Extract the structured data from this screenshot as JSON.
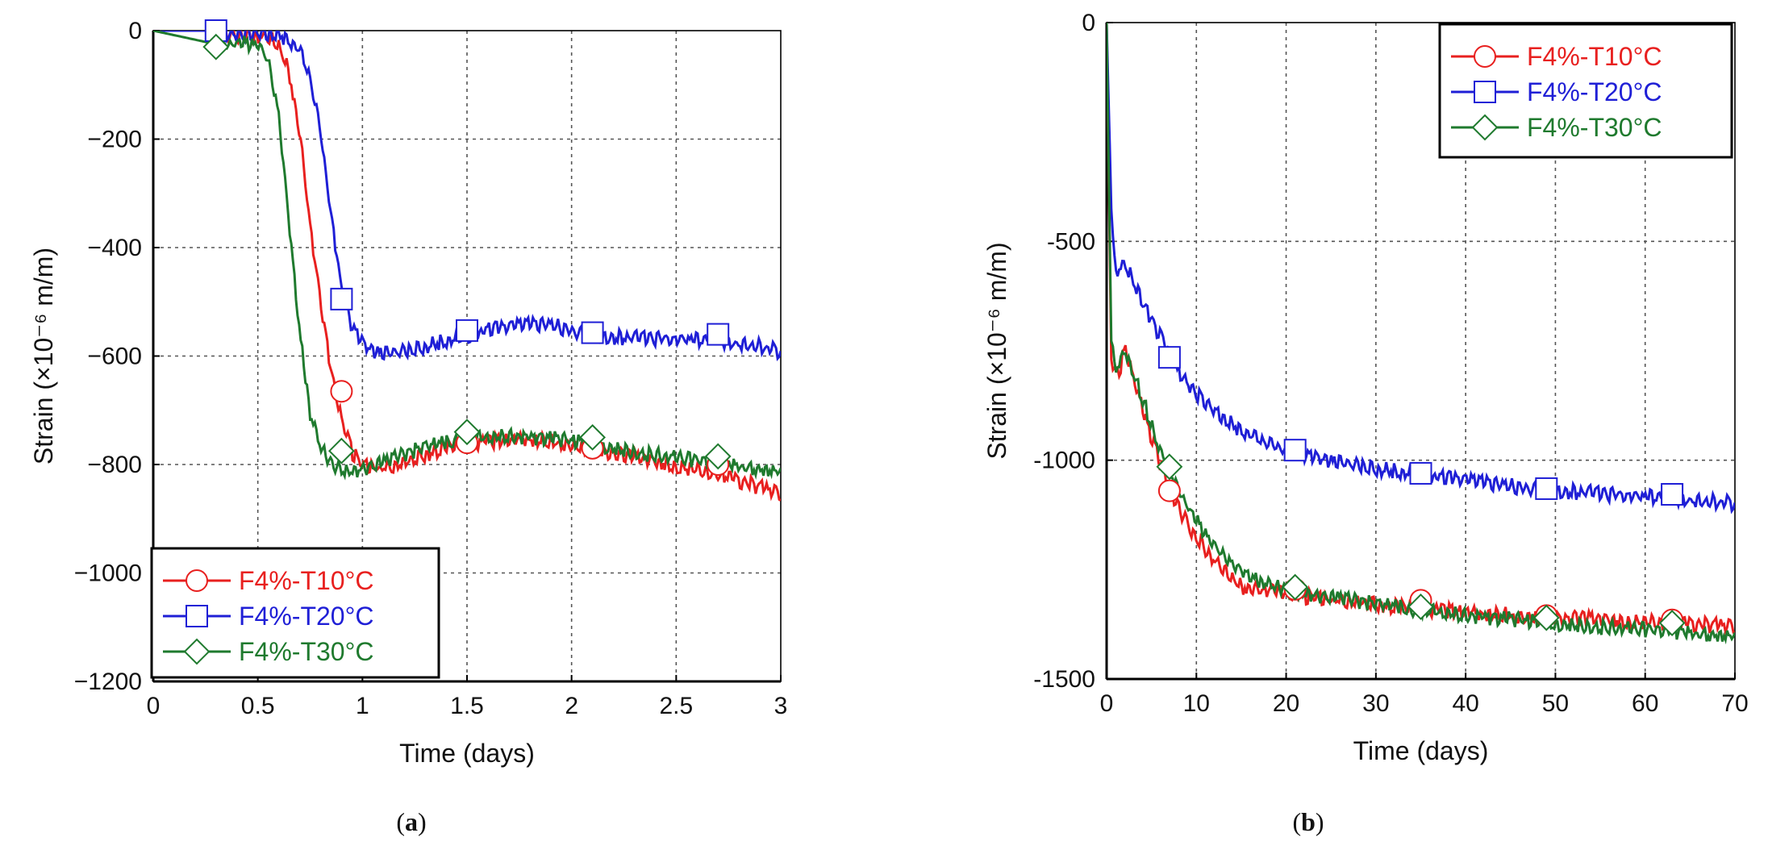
{
  "colors": {
    "F4%-T10°C": "#e8201f",
    "F4%-T20°C": "#1f1fd6",
    "F4%-T30°C": "#1f7a2e",
    "grid": "#555555",
    "axis": "#000000"
  },
  "chart_data": [
    {
      "id": "a",
      "type": "line",
      "panel_label": "a",
      "xlabel": "Time (days)",
      "ylabel": "Strain (×10⁻⁶ m/m)",
      "xlim": [
        0,
        3
      ],
      "ylim": [
        -1200,
        0
      ],
      "xticks": [
        0,
        0.5,
        1,
        1.5,
        2,
        2.5,
        3
      ],
      "xtick_labels": [
        "0",
        "0.5",
        "1",
        "1.5",
        "2",
        "2.5",
        "3"
      ],
      "yticks": [
        0,
        -200,
        -400,
        -600,
        -800,
        -1000,
        -1200
      ],
      "ytick_labels": [
        "0",
        "−200",
        "−400",
        "−600",
        "−800",
        "−1000",
        "−1200"
      ],
      "grid": true,
      "legend_position": "bottom-left",
      "series": [
        {
          "name": "F4%-T10°C",
          "marker": "circle",
          "x": [
            0,
            0.3,
            0.55,
            0.6,
            0.65,
            0.7,
            0.75,
            0.8,
            0.85,
            0.9,
            0.95,
            1.0,
            1.1,
            1.2,
            1.3,
            1.4,
            1.5,
            1.6,
            1.8,
            2.0,
            2.1,
            2.3,
            2.5,
            2.7,
            2.9,
            3.0
          ],
          "y": [
            0,
            0,
            -5,
            -20,
            -70,
            -180,
            -350,
            -500,
            -620,
            -710,
            -770,
            -795,
            -800,
            -790,
            -775,
            -760,
            -755,
            -750,
            -745,
            -755,
            -765,
            -780,
            -795,
            -810,
            -835,
            -848
          ],
          "markers_x": [
            0.9,
            1.5,
            2.1,
            2.7
          ],
          "markers_y": [
            -665,
            -760,
            -770,
            -800
          ]
        },
        {
          "name": "F4%-T20°C",
          "marker": "square",
          "x": [
            0,
            0.3,
            0.6,
            0.65,
            0.7,
            0.75,
            0.8,
            0.85,
            0.9,
            0.95,
            1.0,
            1.05,
            1.1,
            1.2,
            1.3,
            1.4,
            1.5,
            1.6,
            1.8,
            1.9,
            2.0,
            2.1,
            2.3,
            2.5,
            2.7,
            2.9,
            3.0
          ],
          "y": [
            0,
            0,
            0,
            -10,
            -30,
            -80,
            -180,
            -330,
            -470,
            -540,
            -570,
            -585,
            -590,
            -585,
            -575,
            -565,
            -555,
            -545,
            -535,
            -535,
            -545,
            -555,
            -560,
            -562,
            -565,
            -575,
            -585
          ],
          "markers_x": [
            0.3,
            0.9,
            1.5,
            2.1,
            2.7
          ],
          "markers_y": [
            0,
            -495,
            -553,
            -557,
            -560
          ]
        },
        {
          "name": "F4%-T30°C",
          "marker": "diamond",
          "x": [
            0,
            0.3,
            0.4,
            0.5,
            0.55,
            0.6,
            0.65,
            0.7,
            0.75,
            0.8,
            0.85,
            0.9,
            0.95,
            1.0,
            1.1,
            1.2,
            1.3,
            1.5,
            1.7,
            1.9,
            2.1,
            2.3,
            2.5,
            2.7,
            2.9,
            3.0
          ],
          "y": [
            0,
            -25,
            -15,
            -20,
            -50,
            -150,
            -350,
            -550,
            -700,
            -760,
            -790,
            -800,
            -805,
            -800,
            -790,
            -775,
            -760,
            -745,
            -740,
            -745,
            -755,
            -770,
            -780,
            -790,
            -800,
            -805
          ],
          "markers_x": [
            0.3,
            0.9,
            1.5,
            2.1,
            2.7
          ],
          "markers_y": [
            -30,
            -775,
            -740,
            -750,
            -785
          ]
        }
      ]
    },
    {
      "id": "b",
      "type": "line",
      "panel_label": "b",
      "xlabel": "Time (days)",
      "ylabel": "Strain (×10⁻⁶ m/m)",
      "xlim": [
        0,
        70
      ],
      "ylim": [
        -1500,
        0
      ],
      "xticks": [
        0,
        10,
        20,
        30,
        40,
        50,
        60,
        70
      ],
      "xtick_labels": [
        "0",
        "10",
        "20",
        "30",
        "40",
        "50",
        "60",
        "70"
      ],
      "yticks": [
        0,
        -500,
        -1000,
        -1500
      ],
      "ytick_labels": [
        "0",
        "-500",
        "-1000",
        "-1500"
      ],
      "grid": true,
      "legend_position": "top-right",
      "series": [
        {
          "name": "F4%-T10°C",
          "marker": "circle",
          "x": [
            0,
            0.5,
            1.0,
            1.5,
            2.0,
            3,
            4,
            5,
            6,
            7,
            8,
            10,
            12,
            14,
            15,
            18,
            21,
            25,
            30,
            35,
            40,
            45,
            50,
            55,
            60,
            63,
            65,
            70
          ],
          "y": [
            0,
            -750,
            -800,
            -780,
            -740,
            -800,
            -870,
            -940,
            -1000,
            -1060,
            -1100,
            -1170,
            -1220,
            -1260,
            -1280,
            -1290,
            -1300,
            -1310,
            -1320,
            -1330,
            -1338,
            -1345,
            -1350,
            -1355,
            -1360,
            -1362,
            -1365,
            -1372
          ],
          "markers_x": [
            7,
            21,
            35,
            49,
            63
          ],
          "markers_y": [
            -1070,
            -1295,
            -1320,
            -1355,
            -1365
          ]
        },
        {
          "name": "F4%-T20°C",
          "marker": "square",
          "x": [
            0,
            0.5,
            1.0,
            1.5,
            2.0,
            3,
            4,
            5,
            6,
            7,
            8,
            10,
            12,
            14,
            17,
            21,
            25,
            30,
            35,
            40,
            45,
            50,
            55,
            60,
            63,
            65,
            70
          ],
          "y": [
            0,
            -400,
            -570,
            -550,
            -540,
            -580,
            -630,
            -670,
            -710,
            -750,
            -790,
            -840,
            -880,
            -910,
            -945,
            -975,
            -995,
            -1010,
            -1025,
            -1038,
            -1050,
            -1060,
            -1068,
            -1075,
            -1078,
            -1082,
            -1090
          ],
          "markers_x": [
            7,
            21,
            35,
            49,
            63
          ],
          "markers_y": [
            -765,
            -977,
            -1030,
            -1065,
            -1078
          ]
        },
        {
          "name": "F4%-T30°C",
          "marker": "diamond",
          "x": [
            0,
            0.5,
            1.0,
            1.5,
            2.0,
            3,
            4,
            5,
            6,
            7,
            8,
            10,
            12,
            14,
            17,
            21,
            25,
            30,
            35,
            40,
            45,
            50,
            55,
            60,
            63,
            65,
            70
          ],
          "y": [
            0,
            -700,
            -790,
            -760,
            -730,
            -790,
            -850,
            -910,
            -965,
            -1015,
            -1060,
            -1130,
            -1190,
            -1230,
            -1270,
            -1290,
            -1305,
            -1320,
            -1333,
            -1345,
            -1355,
            -1365,
            -1372,
            -1378,
            -1382,
            -1385,
            -1392
          ],
          "markers_x": [
            7,
            21,
            35,
            49,
            63
          ],
          "markers_y": [
            -1015,
            -1290,
            -1335,
            -1360,
            -1372
          ]
        }
      ]
    }
  ]
}
